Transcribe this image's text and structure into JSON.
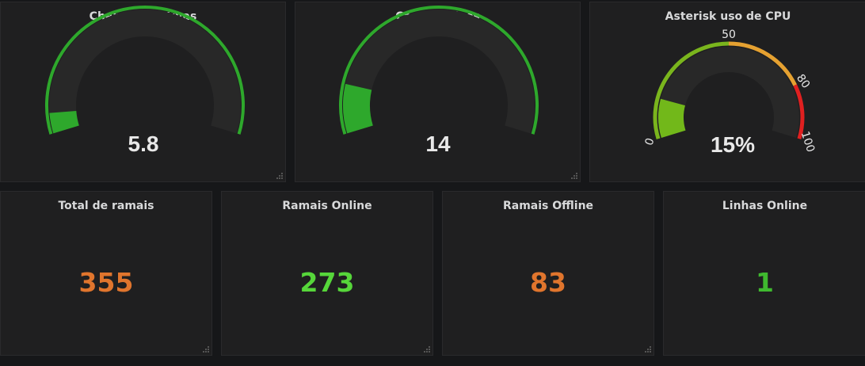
{
  "colors": {
    "orange": "#e0752d",
    "green_value": "#56d63a",
    "green_gauge": "#2ea82c",
    "track": "#282828",
    "cpu_green": "#7eb26d",
    "cpu_orange": "#e5a131",
    "cpu_red": "#e02020"
  },
  "gauges": [
    {
      "title": "Chamadas Ativas",
      "value_text": "5.8",
      "fraction": 0.058
    },
    {
      "title": "Canais Ativos",
      "value_text": "14",
      "fraction": 0.14
    },
    {
      "title": "Asterisk uso de CPU",
      "value_text": "15%",
      "fraction": 0.15,
      "thresholds": {
        "min": "0",
        "mid": "50",
        "warn": "80",
        "max": "100"
      }
    }
  ],
  "stats": [
    {
      "title": "Total de ramais",
      "value": "355",
      "color": "#e0752d"
    },
    {
      "title": "Ramais Online",
      "value": "273",
      "color": "#56d63a"
    },
    {
      "title": "Ramais Offline",
      "value": "83",
      "color": "#e0752d"
    },
    {
      "title": "Linhas Online",
      "value": "1",
      "color": "#3fb92f"
    }
  ]
}
